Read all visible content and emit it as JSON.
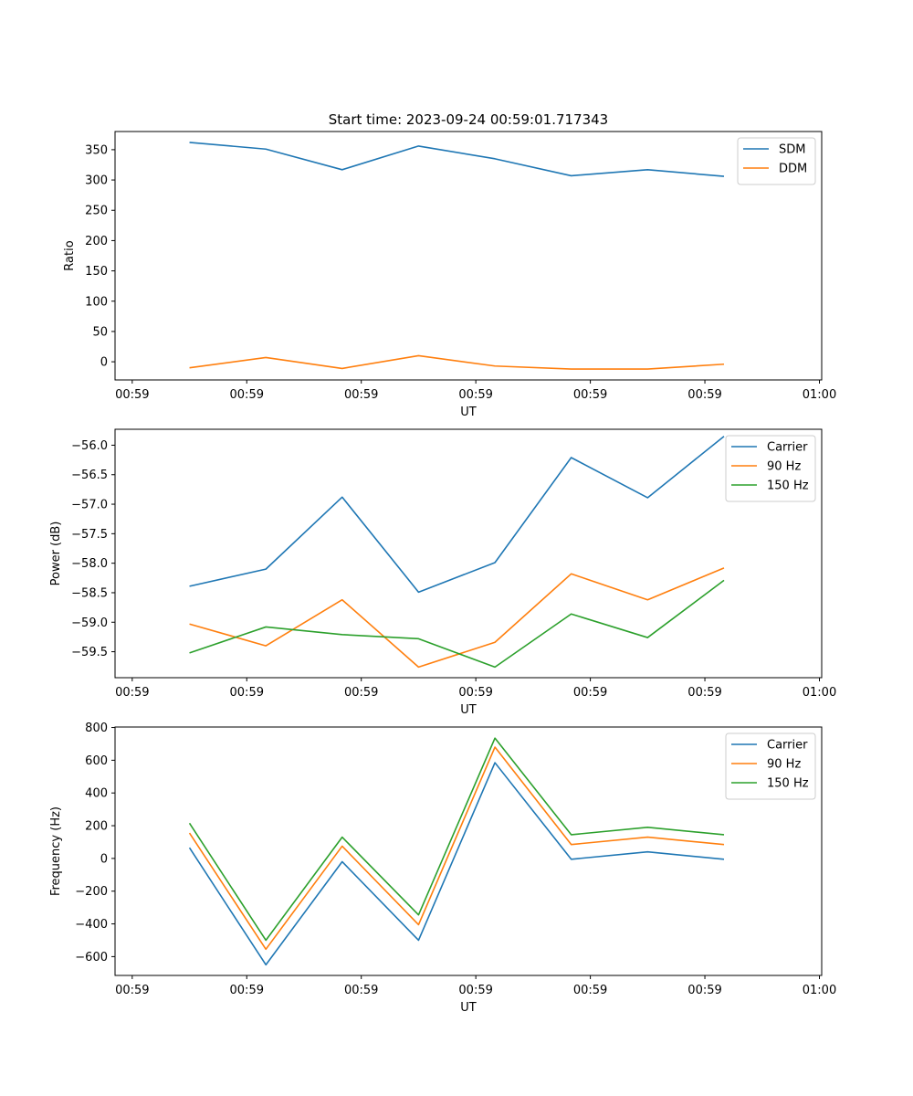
{
  "chart_data": [
    {
      "type": "line",
      "title": "Start time: 2023-09-24 00:59:01.717343",
      "xlabel": "UT",
      "ylabel": "Ratio",
      "x": [
        0.5,
        1.167,
        1.833,
        2.5,
        3.167,
        3.833,
        4.5,
        5.167
      ],
      "xlim": [
        -0.15,
        6.02
      ],
      "xticks": [
        0,
        1,
        2,
        3,
        4,
        5,
        6
      ],
      "xtick_labels": [
        "00:59",
        "00:59",
        "00:59",
        "00:59",
        "00:59",
        "00:59",
        "01:00"
      ],
      "ylim": [
        -30,
        380
      ],
      "yticks": [
        0,
        50,
        100,
        150,
        200,
        250,
        300,
        350
      ],
      "ytick_labels": [
        "0",
        "50",
        "100",
        "150",
        "200",
        "250",
        "300",
        "350"
      ],
      "legend_position": "top-right",
      "series": [
        {
          "name": "SDM",
          "color": "#1f77b4",
          "values": [
            362,
            351,
            317,
            356,
            335,
            307,
            317,
            306
          ]
        },
        {
          "name": "DDM",
          "color": "#ff7f0e",
          "values": [
            -10,
            7,
            -11,
            10,
            -7,
            -12,
            -12,
            -4
          ]
        }
      ]
    },
    {
      "type": "line",
      "title": "",
      "xlabel": "UT",
      "ylabel": "Power (dB)",
      "x": [
        0.5,
        1.167,
        1.833,
        2.5,
        3.167,
        3.833,
        4.5,
        5.167
      ],
      "xlim": [
        -0.15,
        6.02
      ],
      "xticks": [
        0,
        1,
        2,
        3,
        4,
        5,
        6
      ],
      "xtick_labels": [
        "00:59",
        "00:59",
        "00:59",
        "00:59",
        "00:59",
        "00:59",
        "01:00"
      ],
      "ylim": [
        -59.94,
        -55.73
      ],
      "yticks": [
        -59.5,
        -59.0,
        -58.5,
        -58.0,
        -57.5,
        -57.0,
        -56.5,
        -56.0
      ],
      "ytick_labels": [
        "−59.5",
        "−59.0",
        "−58.5",
        "−58.0",
        "−57.5",
        "−57.0",
        "−56.5",
        "−56.0"
      ],
      "legend_position": "top-right",
      "series": [
        {
          "name": "Carrier",
          "color": "#1f77b4",
          "values": [
            -58.39,
            -58.1,
            -56.88,
            -58.49,
            -57.99,
            -56.21,
            -56.89,
            -55.85
          ]
        },
        {
          "name": "90 Hz",
          "color": "#ff7f0e",
          "values": [
            -59.03,
            -59.4,
            -58.62,
            -59.76,
            -59.34,
            -58.18,
            -58.62,
            -58.08
          ]
        },
        {
          "name": "150 Hz",
          "color": "#2ca02c",
          "values": [
            -59.52,
            -59.08,
            -59.21,
            -59.28,
            -59.76,
            -58.86,
            -59.26,
            -58.29
          ]
        }
      ]
    },
    {
      "type": "line",
      "title": "",
      "xlabel": "UT",
      "ylabel": "Frequency (Hz)",
      "x": [
        0.5,
        1.167,
        1.833,
        2.5,
        3.167,
        3.833,
        4.5,
        5.167
      ],
      "xlim": [
        -0.15,
        6.02
      ],
      "xticks": [
        0,
        1,
        2,
        3,
        4,
        5,
        6
      ],
      "xtick_labels": [
        "00:59",
        "00:59",
        "00:59",
        "00:59",
        "00:59",
        "00:59",
        "01:00"
      ],
      "ylim": [
        -715,
        803
      ],
      "yticks": [
        -600,
        -400,
        -200,
        0,
        200,
        400,
        600,
        800
      ],
      "ytick_labels": [
        "−600",
        "−400",
        "−200",
        "0",
        "200",
        "400",
        "600",
        "800"
      ],
      "legend_position": "top-right",
      "series": [
        {
          "name": "Carrier",
          "color": "#1f77b4",
          "values": [
            65,
            -650,
            -20,
            -500,
            585,
            -5,
            40,
            -5
          ]
        },
        {
          "name": "90 Hz",
          "color": "#ff7f0e",
          "values": [
            155,
            -555,
            75,
            -405,
            680,
            85,
            130,
            85
          ]
        },
        {
          "name": "150 Hz",
          "color": "#2ca02c",
          "values": [
            215,
            -500,
            130,
            -345,
            735,
            145,
            190,
            145
          ]
        }
      ]
    }
  ]
}
